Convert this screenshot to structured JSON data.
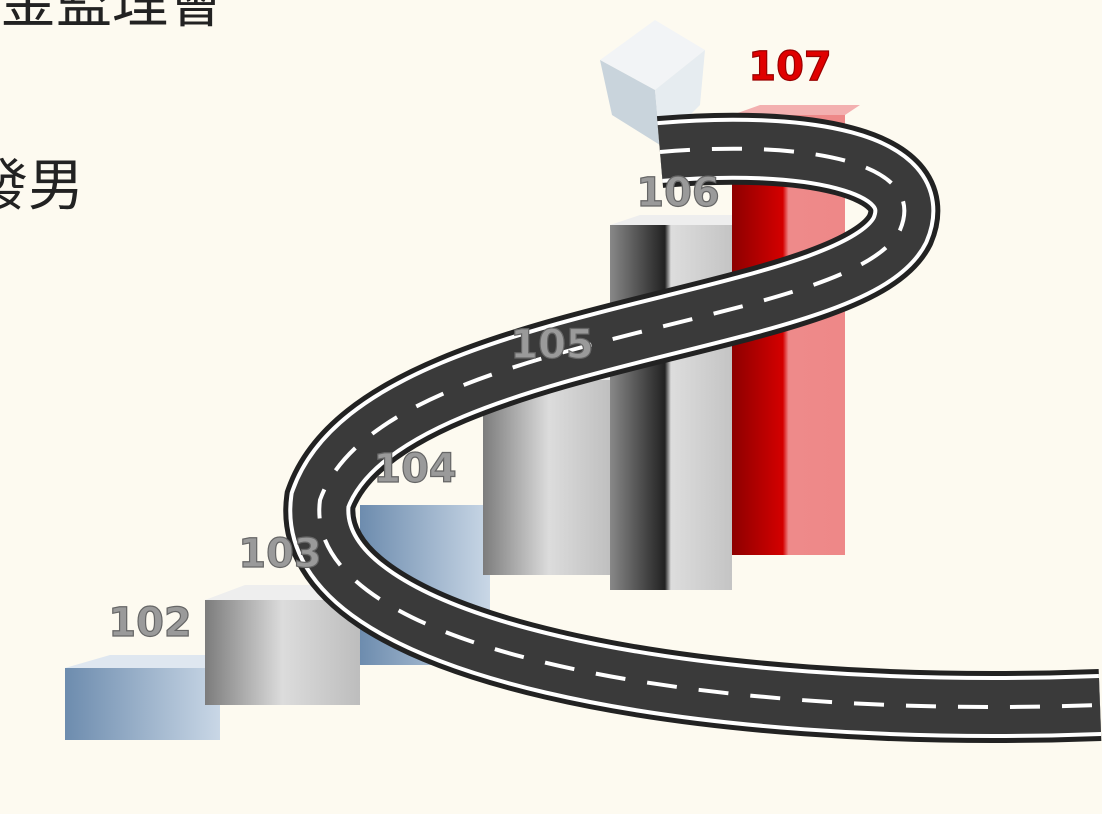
{
  "title_lines": [
    "金監理會",
    "發男"
  ],
  "labels": [
    "102",
    "103",
    "104",
    "105",
    "106",
    "107"
  ]
}
